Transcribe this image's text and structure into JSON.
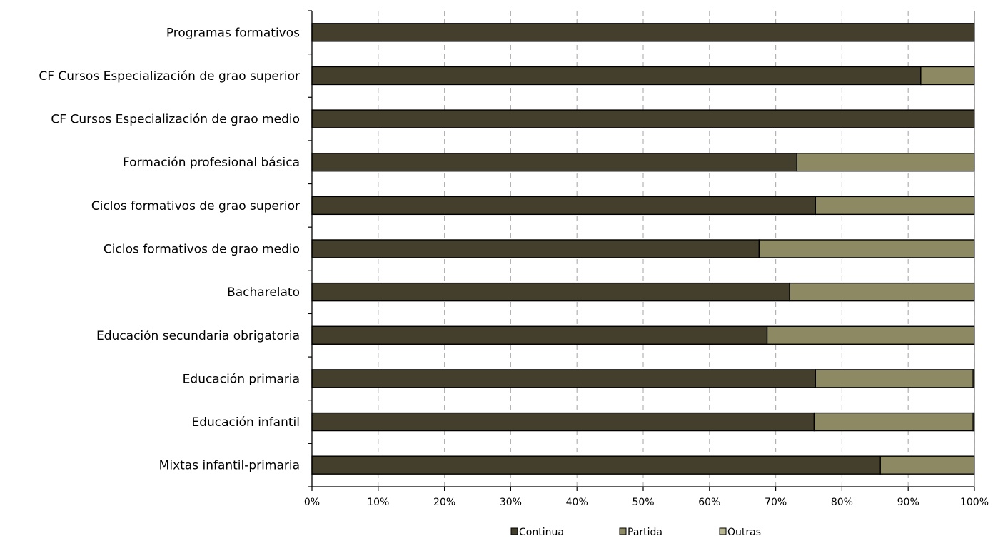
{
  "chart_data": {
    "type": "bar",
    "orientation": "horizontal",
    "stacked": "percent",
    "categories": [
      "Programas formativos",
      "CF Cursos Especialización de grao superior",
      "CF Cursos Especialización de grao medio",
      "Formación profesional básica",
      "Ciclos formativos de grao superior",
      "Ciclos formativos de grao medio",
      "Bacharelato",
      "Educación secundaria obrigatoria",
      "Educación primaria",
      "Educación infantil",
      "Mixtas infantil-primaria"
    ],
    "series": [
      {
        "name": "Continua",
        "color": "#433f2c",
        "values": [
          100,
          91.9,
          100,
          73.2,
          76.0,
          67.5,
          72.1,
          68.7,
          76.0,
          75.8,
          85.8
        ]
      },
      {
        "name": "Partida",
        "color": "#8c8963",
        "values": [
          0,
          8.1,
          0,
          26.8,
          24.0,
          32.5,
          27.9,
          31.3,
          23.8,
          24.0,
          14.2
        ]
      },
      {
        "name": "Outras",
        "color": "#b8b691",
        "values": [
          0,
          0,
          0,
          0,
          0,
          0,
          0,
          0,
          0.2,
          0.2,
          0
        ]
      }
    ],
    "x_ticks": [
      "0%",
      "10%",
      "20%",
      "30%",
      "40%",
      "50%",
      "60%",
      "70%",
      "80%",
      "90%",
      "100%"
    ],
    "xlim": [
      0,
      100
    ],
    "grid": "vertical-dashed",
    "legend_position": "bottom",
    "title": "",
    "xlabel": "",
    "ylabel": ""
  }
}
